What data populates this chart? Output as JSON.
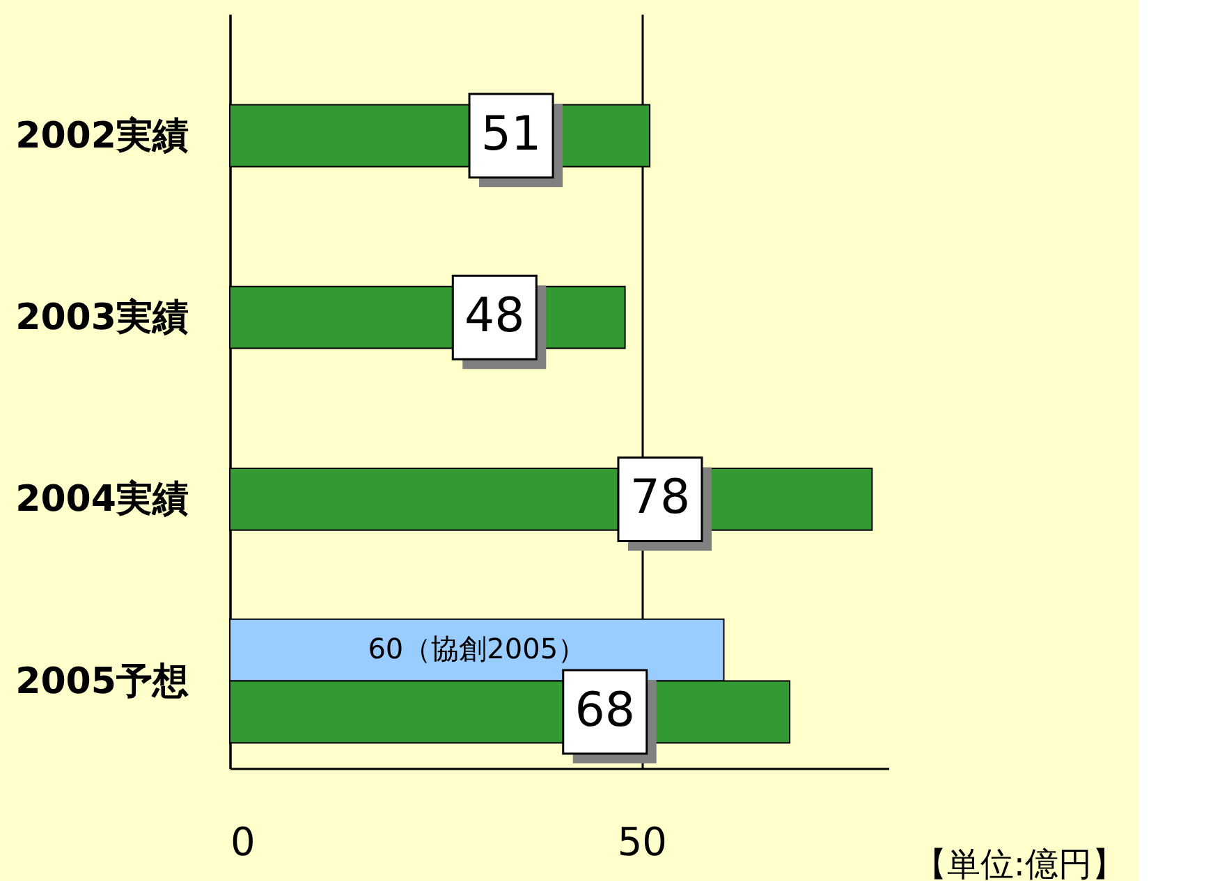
{
  "chart_data": {
    "type": "bar",
    "orientation": "horizontal",
    "categories": [
      "2002実績",
      "2003実績",
      "2004実績",
      "2005予想"
    ],
    "series": [
      {
        "color": "#99ccff",
        "values": [
          null,
          null,
          null,
          60
        ],
        "value_labels": [
          null,
          null,
          null,
          "60（協創2005）"
        ]
      },
      {
        "color": "#339933",
        "values": [
          51,
          48,
          78,
          68
        ]
      }
    ],
    "data_labels": true,
    "xlim": [
      0,
      80
    ],
    "xticks": [
      0,
      50
    ],
    "grid": "x",
    "annotations": [
      "【単位:億円】"
    ]
  }
}
